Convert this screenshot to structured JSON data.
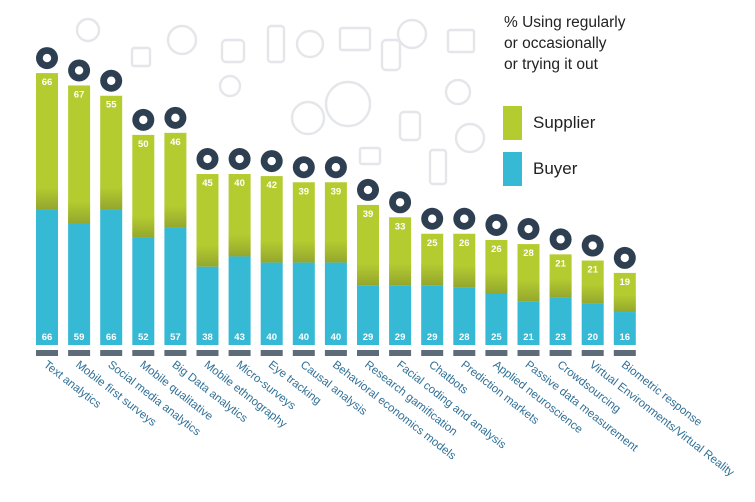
{
  "legend": {
    "title_lines": [
      "% Using regularly",
      "or occasionally",
      "or trying it out"
    ],
    "items": [
      {
        "label": "Supplier",
        "color": "#b5cc30"
      },
      {
        "label": "Buyer",
        "color": "#36b9d4"
      }
    ]
  },
  "chart_data": {
    "type": "bar",
    "categories": [
      "Text analytics",
      "Mobile first surveys",
      "Social media analytics",
      "Mobile qualitative",
      "Big Data analytics",
      "Mobile ethnography",
      "Micro-surveys",
      "Eye tracking",
      "Causal analysis",
      "Behavioral economics models",
      "Research gamification",
      "Facial coding and analysis",
      "Chatbots",
      "Prediction markets",
      "Applied neuroscience",
      "Passive data measurement",
      "Crowdsourcing",
      "Virtual Environments/Virtual Reality",
      "Biometric response"
    ],
    "series": [
      {
        "name": "Supplier",
        "color": "#b5cc30",
        "values": [
          66,
          67,
          55,
          50,
          46,
          45,
          40,
          42,
          39,
          39,
          39,
          33,
          25,
          26,
          26,
          28,
          21,
          21,
          19
        ]
      },
      {
        "name": "Buyer",
        "color": "#36b9d4",
        "values": [
          66,
          59,
          66,
          52,
          57,
          38,
          43,
          40,
          40,
          40,
          29,
          29,
          29,
          28,
          25,
          21,
          23,
          20,
          16
        ]
      }
    ],
    "icons": [
      "text-bubble-icon",
      "smartphone-icon",
      "twitter-board-icon",
      "smartphone-chat-icon",
      "network-cluster-icon",
      "location-pin-icon",
      "checkbox-icon",
      "eye-icon",
      "newtons-cradle-icon",
      "brain-shapes-icon",
      "dice-icon",
      "face-icon",
      "robot-icon",
      "gauge-icon",
      "brain-gear-icon",
      "pie-chart-icon",
      "people-group-icon",
      "vr-headset-icon",
      "heart-pulse-icon"
    ],
    "ylim": [
      0,
      100
    ]
  }
}
